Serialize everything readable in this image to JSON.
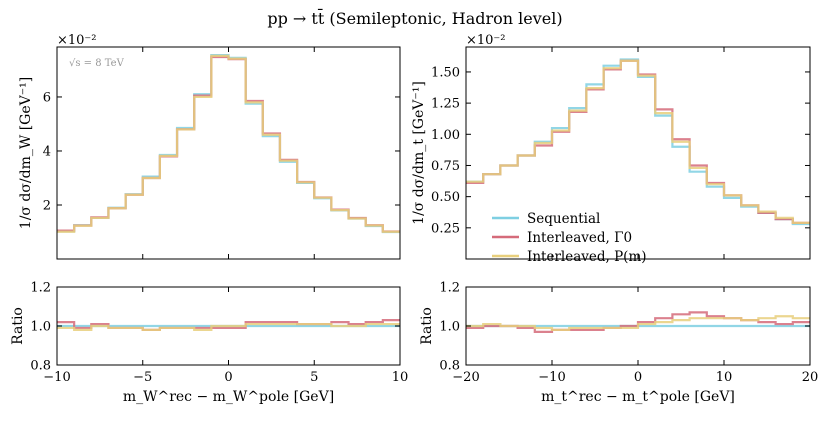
{
  "figure_title": "pp → tt̄ (Semileptonic, Hadron level)",
  "colors": {
    "Sequential": "#7ecfe2",
    "Interleaved, Γ0": "#d56b7a",
    "Interleaved, P(m)": "#e8cf7c",
    "frame": "#000000"
  },
  "chart_data": [
    {
      "type": "line",
      "subtype": "step-histogram",
      "panel": "left",
      "title": "",
      "annotation": "√s = 8 TeV",
      "multiplier": "×10⁻²",
      "xlabel": "m_W^rec − m_W^pole [GeV]",
      "ylabel": "1/σ dσ/dm_W [GeV⁻¹]",
      "xlim": [
        -10,
        10
      ],
      "ylim": [
        0.0,
        7.85
      ],
      "xticks": [
        -10,
        -5,
        0,
        5,
        10
      ],
      "xtick_labels": [
        "−10",
        "−5",
        "0",
        "5",
        "10"
      ],
      "yticks": [
        2,
        4,
        6
      ],
      "ytick_labels": [
        "2",
        "4",
        "6"
      ],
      "bin_edges": [
        -10,
        -9,
        -8,
        -7,
        -6,
        -5,
        -4,
        -3,
        -2,
        -1,
        0,
        1,
        2,
        3,
        4,
        5,
        6,
        7,
        8,
        9,
        10
      ],
      "series": [
        {
          "name": "Sequential",
          "values": [
            1.02,
            1.25,
            1.52,
            1.9,
            2.4,
            3.05,
            3.85,
            4.85,
            6.1,
            7.55,
            7.45,
            5.75,
            4.55,
            3.6,
            2.82,
            2.25,
            1.8,
            1.5,
            1.22,
            1.0
          ]
        },
        {
          "name": "Interleaved, Γ0",
          "values": [
            1.05,
            1.24,
            1.54,
            1.88,
            2.38,
            3.0,
            3.8,
            4.8,
            6.05,
            7.48,
            7.4,
            5.85,
            4.65,
            3.67,
            2.85,
            2.28,
            1.83,
            1.52,
            1.25,
            1.02
          ]
        },
        {
          "name": "Interleaved, P(m)",
          "values": [
            1.01,
            1.23,
            1.52,
            1.88,
            2.38,
            3.0,
            3.82,
            4.8,
            6.0,
            7.52,
            7.42,
            5.8,
            4.6,
            3.64,
            2.84,
            2.27,
            1.81,
            1.5,
            1.24,
            1.01
          ]
        }
      ],
      "ratio": {
        "ylabel": "Ratio",
        "ylim": [
          0.8,
          1.2
        ],
        "yticks": [
          0.8,
          1.0,
          1.2
        ],
        "ytick_labels": [
          "0.8",
          "1.0",
          "1.2"
        ],
        "series": [
          {
            "name": "Sequential",
            "values": [
              1.0,
              1.0,
              1.0,
              1.0,
              1.0,
              1.0,
              1.0,
              1.0,
              1.0,
              1.0,
              1.0,
              1.0,
              1.0,
              1.0,
              1.0,
              1.0,
              1.0,
              1.0,
              1.0,
              1.0
            ]
          },
          {
            "name": "Interleaved, Γ0",
            "values": [
              1.02,
              0.99,
              1.01,
              0.99,
              0.99,
              0.98,
              0.99,
              0.99,
              0.99,
              0.99,
              0.99,
              1.02,
              1.02,
              1.02,
              1.01,
              1.01,
              1.02,
              1.01,
              1.02,
              1.03
            ]
          },
          {
            "name": "Interleaved, P(m)",
            "values": [
              0.99,
              0.98,
              1.0,
              0.99,
              0.99,
              0.98,
              0.99,
              0.99,
              0.98,
              1.0,
              1.0,
              1.01,
              1.01,
              1.01,
              1.01,
              1.01,
              1.0,
              1.0,
              1.01,
              1.01
            ]
          }
        ]
      }
    },
    {
      "type": "line",
      "subtype": "step-histogram",
      "panel": "right",
      "title": "",
      "multiplier": "×10⁻²",
      "xlabel": "m_t^rec − m_t^pole [GeV]",
      "ylabel": "1/σ dσ/dm_t [GeV⁻¹]",
      "xlim": [
        -20,
        20
      ],
      "ylim": [
        0.0,
        1.7
      ],
      "xticks": [
        -20,
        -10,
        0,
        10,
        20
      ],
      "xtick_labels": [
        "−20",
        "−10",
        "0",
        "10",
        "20"
      ],
      "yticks": [
        0.25,
        0.5,
        0.75,
        1.0,
        1.25,
        1.5
      ],
      "ytick_labels": [
        "0.25",
        "0.50",
        "0.75",
        "1.00",
        "1.25",
        "1.50"
      ],
      "bin_edges": [
        -20,
        -18,
        -16,
        -14,
        -12,
        -10,
        -8,
        -6,
        -4,
        -2,
        0,
        2,
        4,
        6,
        8,
        10,
        12,
        14,
        16,
        18,
        20
      ],
      "legend_position": "center-left",
      "legend": [
        {
          "name": "Sequential",
          "label": "Sequential"
        },
        {
          "name": "Interleaved, Γ0",
          "label": "Interleaved, Γ0"
        },
        {
          "name": "Interleaved, P(m)",
          "label": "Interleaved, P(m)"
        }
      ],
      "series": [
        {
          "name": "Sequential",
          "values": [
            0.62,
            0.68,
            0.75,
            0.83,
            0.94,
            1.05,
            1.21,
            1.4,
            1.55,
            1.6,
            1.46,
            1.15,
            0.9,
            0.7,
            0.58,
            0.49,
            0.42,
            0.37,
            0.32,
            0.28
          ]
        },
        {
          "name": "Interleaved, Γ0",
          "values": [
            0.61,
            0.68,
            0.75,
            0.83,
            0.91,
            1.02,
            1.18,
            1.36,
            1.52,
            1.59,
            1.48,
            1.2,
            0.96,
            0.75,
            0.61,
            0.51,
            0.43,
            0.37,
            0.32,
            0.29
          ]
        },
        {
          "name": "Interleaved, P(m)",
          "values": [
            0.62,
            0.68,
            0.75,
            0.83,
            0.93,
            1.03,
            1.19,
            1.37,
            1.53,
            1.59,
            1.47,
            1.17,
            0.94,
            0.73,
            0.6,
            0.51,
            0.43,
            0.38,
            0.33,
            0.29
          ]
        }
      ],
      "ratio": {
        "ylabel": "Ratio",
        "ylim": [
          0.8,
          1.2
        ],
        "yticks": [
          0.8,
          1.0,
          1.2
        ],
        "ytick_labels": [
          "0.8",
          "1.0",
          "1.2"
        ],
        "series": [
          {
            "name": "Sequential",
            "values": [
              1.0,
              1.0,
              1.0,
              1.0,
              1.0,
              1.0,
              1.0,
              1.0,
              1.0,
              1.0,
              1.0,
              1.0,
              1.0,
              1.0,
              1.0,
              1.0,
              1.0,
              1.0,
              1.0,
              1.0
            ]
          },
          {
            "name": "Interleaved, Γ0",
            "values": [
              0.99,
              1.0,
              1.0,
              0.99,
              0.97,
              0.98,
              0.98,
              0.98,
              0.99,
              1.0,
              1.02,
              1.04,
              1.06,
              1.07,
              1.05,
              1.04,
              1.03,
              1.02,
              1.01,
              1.02
            ]
          },
          {
            "name": "Interleaved, P(m)",
            "values": [
              1.0,
              1.01,
              1.0,
              1.0,
              0.99,
              0.98,
              0.99,
              0.99,
              0.99,
              0.99,
              1.01,
              1.02,
              1.03,
              1.04,
              1.04,
              1.04,
              1.03,
              1.04,
              1.05,
              1.04
            ]
          }
        ]
      }
    }
  ]
}
